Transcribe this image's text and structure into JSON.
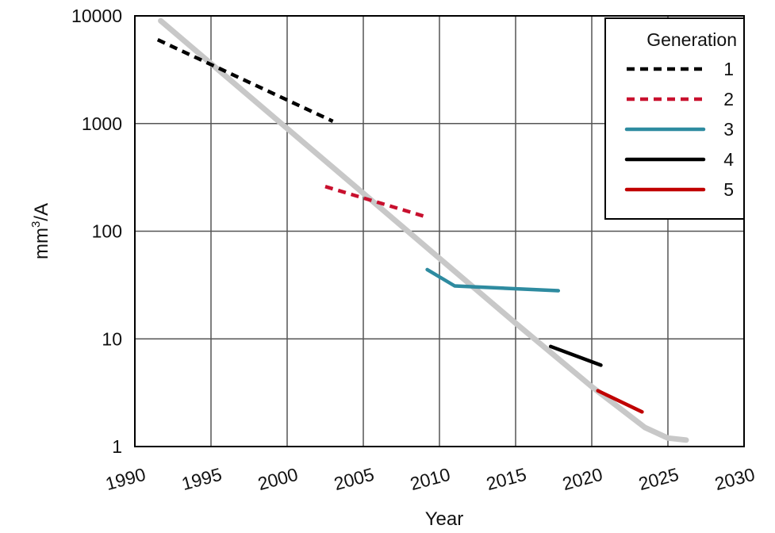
{
  "chart_data": {
    "type": "line",
    "title": "",
    "xlabel": "Year",
    "ylabel": "mm³/A",
    "ylabel_base": "mm",
    "ylabel_sup": "3",
    "ylabel_tail": "/A",
    "xlim": [
      1990,
      2030
    ],
    "ylim": [
      1,
      10000
    ],
    "yscale": "log",
    "x_ticks": [
      1990,
      1995,
      2000,
      2005,
      2010,
      2015,
      2020,
      2025,
      2030
    ],
    "x_tick_labels": [
      "1990",
      "1995",
      "2000",
      "2005",
      "2010",
      "2015",
      "2020",
      "2025",
      "2030"
    ],
    "y_ticks": [
      1,
      10,
      100,
      1000,
      10000
    ],
    "y_tick_labels": [
      "1",
      "10",
      "100",
      "1000",
      "10000"
    ],
    "grid": true,
    "legend": {
      "title": "Generation",
      "placement": "top-right"
    },
    "trend": {
      "color": "#c8c8c8",
      "points": [
        [
          1991.7,
          9000
        ],
        [
          1995,
          3600
        ],
        [
          2000,
          900
        ],
        [
          2005,
          225
        ],
        [
          2010,
          56
        ],
        [
          2015,
          14
        ],
        [
          2020,
          3.6
        ],
        [
          2023.5,
          1.5
        ],
        [
          2025,
          1.2
        ],
        [
          2026.2,
          1.15
        ]
      ]
    },
    "series": [
      {
        "name": "1",
        "color": "#000000",
        "dash": "dashed",
        "points": [
          [
            1991.5,
            6000
          ],
          [
            2003,
            1050
          ]
        ]
      },
      {
        "name": "2",
        "color": "#c8102e",
        "dash": "dashed",
        "points": [
          [
            2002.5,
            260
          ],
          [
            2009.2,
            135
          ]
        ]
      },
      {
        "name": "3",
        "color": "#2e8ba0",
        "dash": "solid",
        "points": [
          [
            2009.2,
            44
          ],
          [
            2011,
            31
          ],
          [
            2017.8,
            28
          ]
        ]
      },
      {
        "name": "4",
        "color": "#000000",
        "dash": "solid",
        "points": [
          [
            2017.3,
            8.5
          ],
          [
            2020.6,
            5.7
          ]
        ]
      },
      {
        "name": "5",
        "color": "#c00000",
        "dash": "solid",
        "points": [
          [
            2020.4,
            3.3
          ],
          [
            2023.3,
            2.1
          ]
        ]
      }
    ]
  }
}
